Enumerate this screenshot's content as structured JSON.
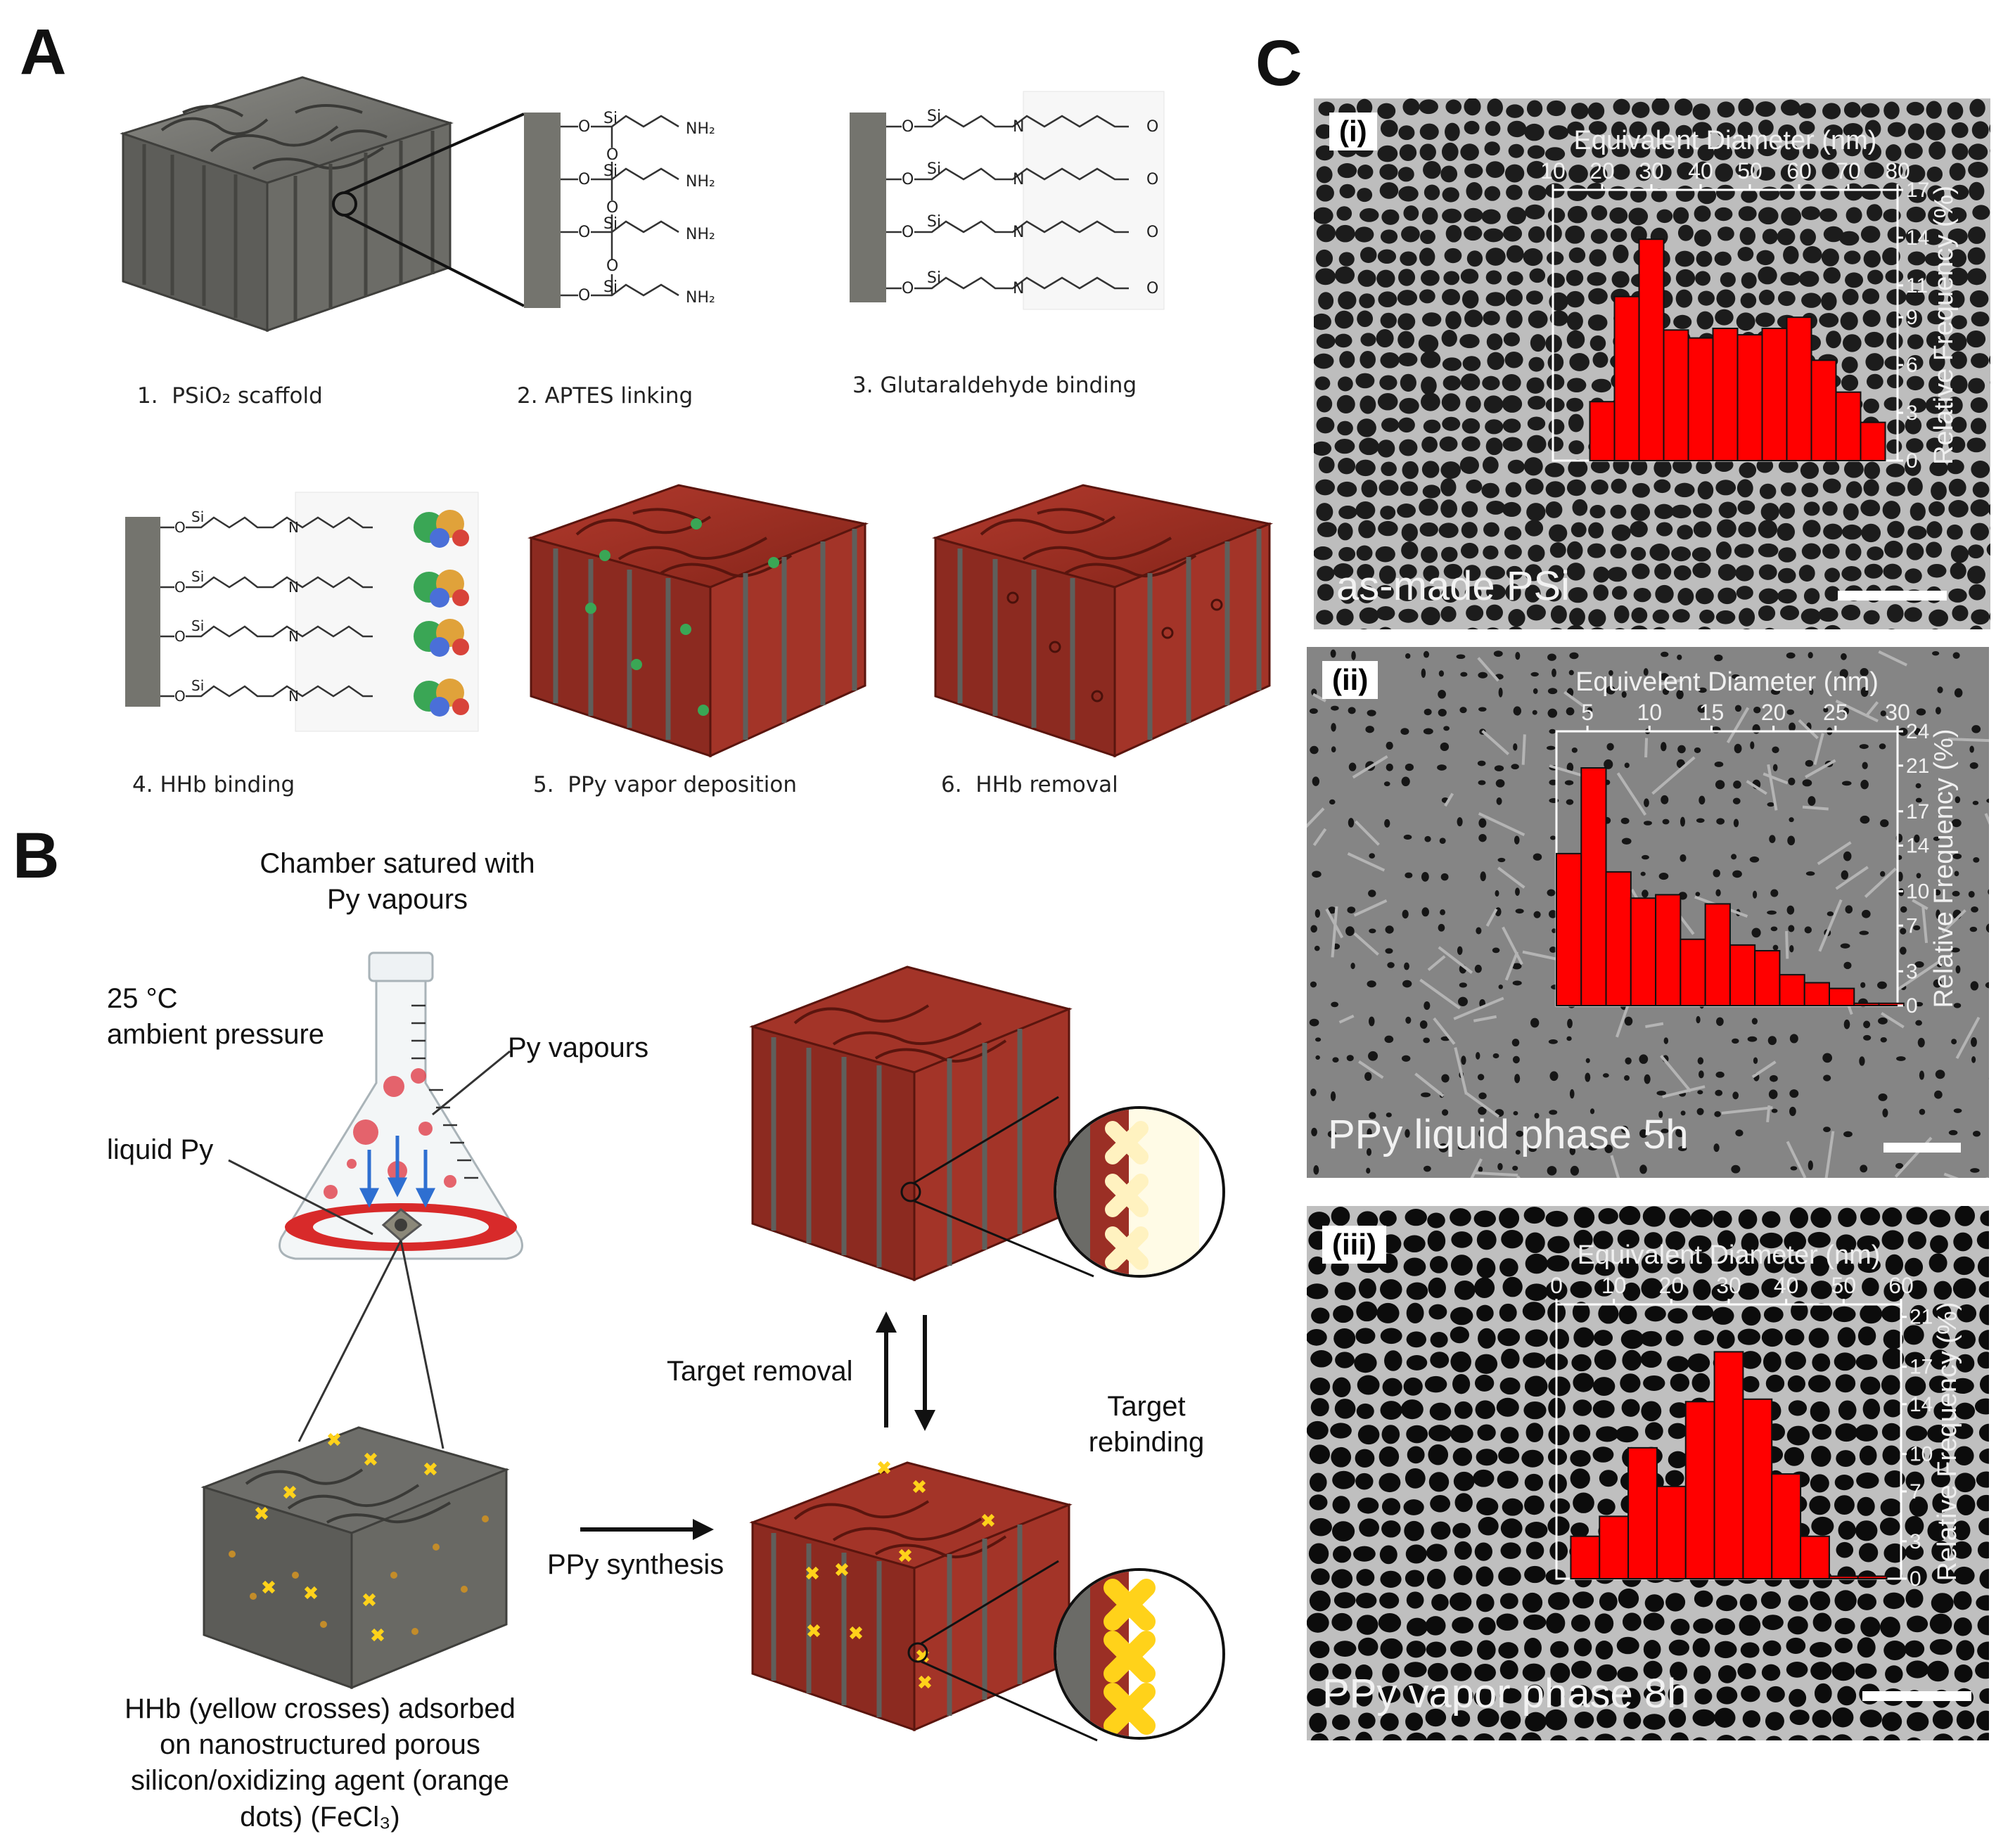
{
  "panels": {
    "a": "A",
    "b": "B",
    "c": "C"
  },
  "panel_a": {
    "steps": [
      {
        "num": "1.",
        "label": "PSiO₂ scaffold"
      },
      {
        "num": "2.",
        "label": "APTES linking"
      },
      {
        "num": "3.",
        "label": "Glutaraldehyde binding"
      },
      {
        "num": "4.",
        "label": "HHb binding"
      },
      {
        "num": "5.",
        "label": "PPy vapor deposition"
      },
      {
        "num": "6.",
        "label": "HHb removal"
      }
    ],
    "atom_labels": {
      "si": "Si",
      "o": "O",
      "nh2": "NH₂",
      "n": "N"
    }
  },
  "panel_b": {
    "chamber_label_1": "Chamber satured with",
    "chamber_label_2": "Py vapours",
    "temp": "25 °C",
    "pressure": "ambient pressure",
    "py_vapours": "Py vapours",
    "liquid_py": "liquid Py",
    "target_removal": "Target removal",
    "target_rebinding_1": "Target",
    "target_rebinding_2": "rebinding",
    "ppy_synthesis": "PPy synthesis",
    "caption_1": "HHb (yellow crosses) adsorbed",
    "caption_2": "on nanostructured porous",
    "caption_3": "silicon/oxidizing agent (orange",
    "caption_4": "dots) (FeCl₃)"
  },
  "colors": {
    "ppy": "#9b2f25",
    "scaffold": "#6f6f6a",
    "hhb": "#ffd21a",
    "bar": "#ff0000",
    "arrow_blue": "#2e6fd1"
  },
  "chart_data": [
    {
      "type": "bar",
      "panel": "(i)",
      "caption": "as-made PSi",
      "xlabel": "Equivalent Diameter (nm)",
      "ylabel": "Relative Frequency (%)",
      "xlim": [
        10,
        80
      ],
      "xticks": [
        10,
        20,
        30,
        40,
        50,
        60,
        70,
        80
      ],
      "ylim": [
        0,
        17
      ],
      "yticks": [
        0,
        3,
        6,
        9,
        11,
        14,
        17
      ],
      "bin_width": 5,
      "x": [
        20,
        25,
        30,
        35,
        40,
        45,
        50,
        55,
        60,
        65,
        70,
        75
      ],
      "values": [
        3.7,
        10.3,
        13.9,
        8.2,
        7.7,
        8.3,
        7.9,
        8.3,
        9.0,
        6.3,
        4.3,
        2.4
      ]
    },
    {
      "type": "bar",
      "panel": "(ii)",
      "caption": "PPy liquid phase 5h",
      "xlabel": "Equivelent Diameter (nm)",
      "ylabel": "Relative Frequency (%)",
      "xlim": [
        2.5,
        30
      ],
      "xticks": [
        5,
        10,
        15,
        20,
        25,
        30
      ],
      "ylim": [
        0,
        24
      ],
      "yticks": [
        0,
        3,
        7,
        10,
        14,
        17,
        21,
        24
      ],
      "bin_width": 2,
      "x": [
        3.5,
        5.5,
        7.5,
        9.5,
        11.5,
        13.5,
        15.5,
        17.5,
        19.5,
        21.5,
        23.5,
        25.5,
        27.5,
        29.5
      ],
      "values": [
        13.3,
        20.8,
        11.7,
        9.4,
        9.7,
        5.8,
        8.9,
        5.3,
        4.8,
        2.7,
        2.0,
        1.5,
        0.2,
        0.2
      ]
    },
    {
      "type": "bar",
      "panel": "(iii)",
      "caption": "PPy vapor phase 8h",
      "xlabel": "Equivalent Diameter (nm)",
      "ylabel": "Relative Frequency (%)",
      "xlim": [
        0,
        60
      ],
      "xticks": [
        0,
        10,
        20,
        30,
        40,
        50,
        60
      ],
      "ylim": [
        0,
        22
      ],
      "yticks": [
        0,
        3,
        7,
        10,
        14,
        17,
        21
      ],
      "bin_width": 5,
      "x": [
        5,
        10,
        15,
        20,
        25,
        30,
        35,
        40,
        45,
        50,
        55
      ],
      "values": [
        3.4,
        5.0,
        10.5,
        7.4,
        14.2,
        18.2,
        14.4,
        8.4,
        3.4,
        0.2,
        0.2
      ]
    }
  ]
}
